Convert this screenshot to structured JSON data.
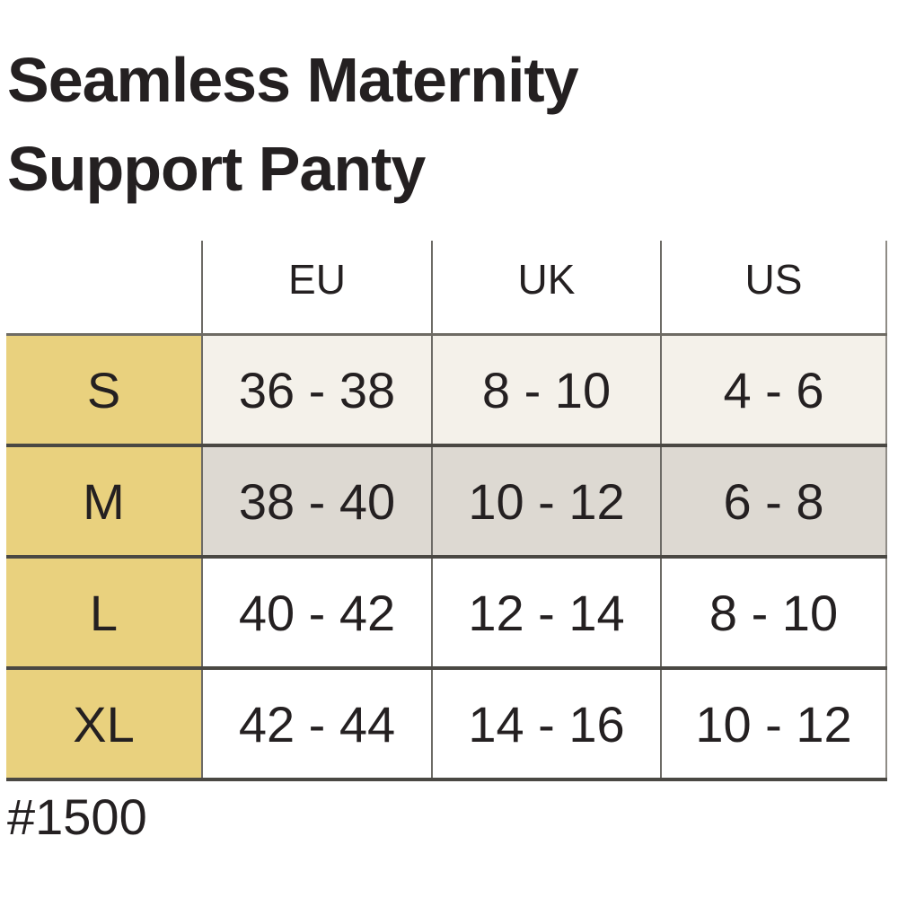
{
  "header": {
    "title_line1": "Seamless Maternity",
    "title_line2": "Support Panty"
  },
  "footer": {
    "product_code": "#1500"
  },
  "chart_data": {
    "type": "table",
    "title": "Seamless Maternity Support Panty",
    "columns": [
      "",
      "EU",
      "UK",
      "US"
    ],
    "rows": [
      {
        "size": "S",
        "EU": "36 - 38",
        "UK": "8 - 10",
        "US": "4 - 6"
      },
      {
        "size": "M",
        "EU": "38 - 40",
        "UK": "10 - 12",
        "US": "6 - 8"
      },
      {
        "size": "L",
        "EU": "40 - 42",
        "UK": "12 - 14",
        "US": "8 - 10"
      },
      {
        "size": "XL",
        "EU": "42 - 44",
        "UK": "14 - 16",
        "US": "10 - 12"
      }
    ],
    "layout": {
      "grid": "on",
      "header_background": "none",
      "legend": "none"
    }
  },
  "colors": {
    "size_column_bg": "#e9d17e",
    "row_s_bg": "#f4f1ea",
    "row_m_bg": "#ddd9d2",
    "row_l_bg": "#ffffff",
    "row_xl_bg": "#ffffff",
    "row_border": "#4a4843",
    "header_border": "#6e6b64",
    "column_border": "#6d6b66",
    "text": "#242021",
    "page_bg": "#ffffff"
  }
}
